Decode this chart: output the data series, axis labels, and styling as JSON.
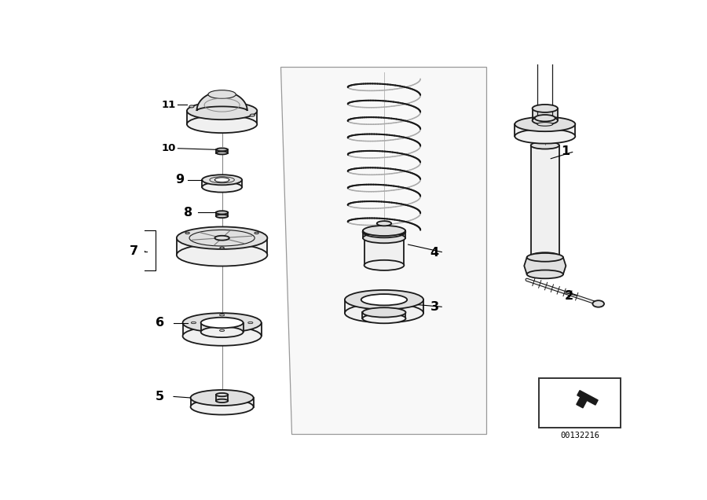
{
  "background_color": "#ffffff",
  "figure_width": 9.0,
  "figure_height": 6.36,
  "dpi": 100,
  "diagram_id": "00132216",
  "lc": "#1a1a1a",
  "lw": 1.3,
  "fill_light": "#f0f0f0",
  "fill_mid": "#e0e0e0",
  "fill_dark": "#c8c8c8",
  "fill_white": "#ffffff",
  "panel_ec": "#999999",
  "panel_fill": "#f8f8f8"
}
